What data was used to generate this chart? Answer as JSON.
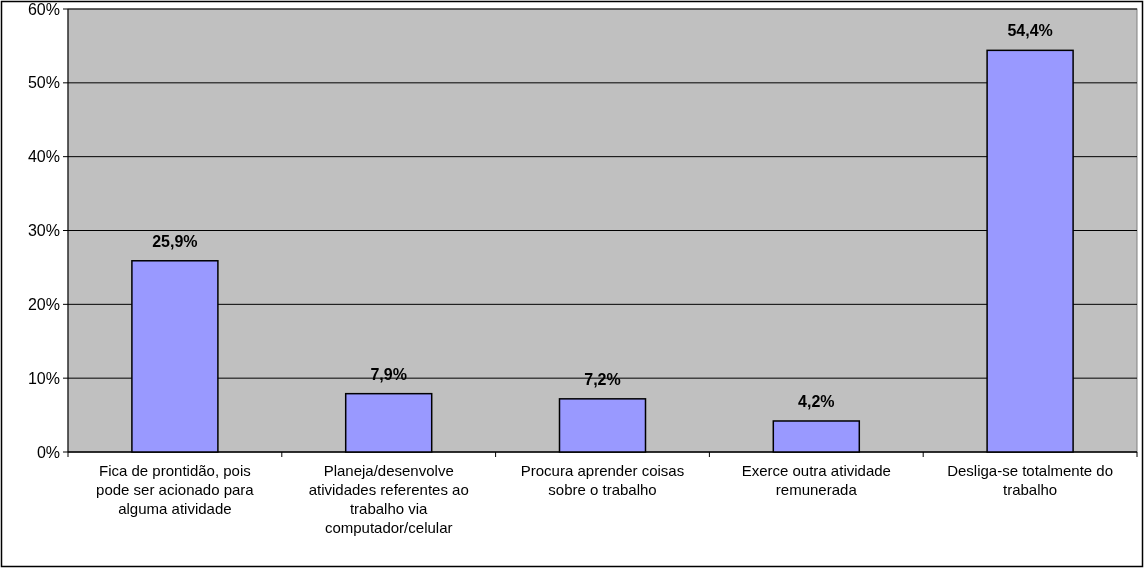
{
  "chart_data": {
    "type": "bar",
    "categories": [
      "Fica de prontidão, pois pode ser acionado para alguma atividade",
      "Planeja/desenvolve atividades referentes ao trabalho via computador/celular",
      "Procura aprender coisas sobre o trabalho",
      "Exerce outra atividade remunerada",
      "Desliga-se totalmente do trabalho"
    ],
    "values": [
      25.9,
      7.9,
      7.2,
      4.2,
      54.4
    ],
    "value_labels": [
      "25,9%",
      "7,9%",
      "7,2%",
      "4,2%",
      "54,4%"
    ],
    "color": "#9999ff",
    "ylim": [
      0,
      60
    ],
    "yticks": [
      {
        "value": 0,
        "label": "0%"
      },
      {
        "value": 10,
        "label": "10%"
      },
      {
        "value": 20,
        "label": "20%"
      },
      {
        "value": 30,
        "label": "30%"
      },
      {
        "value": 40,
        "label": "40%"
      },
      {
        "value": 50,
        "label": "50%"
      },
      {
        "value": 60,
        "label": "60%"
      }
    ],
    "grid": "y"
  }
}
